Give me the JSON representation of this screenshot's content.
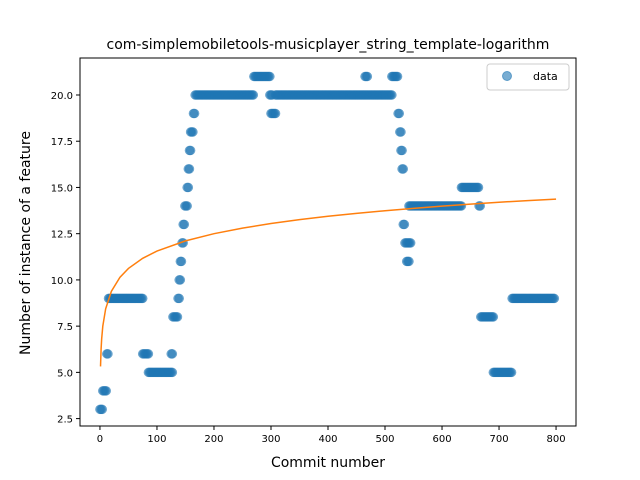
{
  "chart_data": {
    "type": "scatter",
    "title": "com-simplemobiletools-musicplayer_string_template-logarithm",
    "xlabel": "Commit number",
    "ylabel": "Number of instance of a feature",
    "xlim": [
      -35,
      835
    ],
    "ylim": [
      2.1,
      22
    ],
    "xticks": [
      0,
      100,
      200,
      300,
      400,
      500,
      600,
      700,
      800
    ],
    "yticks": [
      2.5,
      5.0,
      7.5,
      10.0,
      12.5,
      15.0,
      17.5,
      20.0
    ],
    "ytick_labels": [
      "2.5",
      "5.0",
      "7.5",
      "10.0",
      "12.5",
      "15.0",
      "17.5",
      "20.0"
    ],
    "legend": {
      "placement": "top-right",
      "entries": [
        "data"
      ]
    },
    "grid": false,
    "colors": {
      "points": "#1f77b4",
      "fit": "#ff7f0e"
    },
    "series": [
      {
        "name": "data",
        "kind": "scatter",
        "segments": [
          {
            "x_start": 0,
            "x_end": 5,
            "y": 3
          },
          {
            "x_start": 5,
            "x_end": 12,
            "y": 4
          },
          {
            "x_start": 12,
            "x_end": 15,
            "y": 6
          },
          {
            "x_start": 15,
            "x_end": 75,
            "y": 9
          },
          {
            "x_start": 75,
            "x_end": 85,
            "y": 6
          },
          {
            "x_start": 85,
            "x_end": 128,
            "y": 5
          },
          {
            "x_start": 125,
            "x_end": 128,
            "y": 6
          },
          {
            "x_start": 128,
            "x_end": 137,
            "y": 8
          },
          {
            "x_start": 137,
            "x_end": 139,
            "y": 9
          },
          {
            "x_start": 139,
            "x_end": 141,
            "y": 10
          },
          {
            "x_start": 141,
            "x_end": 144,
            "y": 11
          },
          {
            "x_start": 144,
            "x_end": 146,
            "y": 12
          },
          {
            "x_start": 146,
            "x_end": 149,
            "y": 13
          },
          {
            "x_start": 149,
            "x_end": 153,
            "y": 14
          },
          {
            "x_start": 153,
            "x_end": 155,
            "y": 15
          },
          {
            "x_start": 155,
            "x_end": 157,
            "y": 16
          },
          {
            "x_start": 157,
            "x_end": 159,
            "y": 17
          },
          {
            "x_start": 159,
            "x_end": 164,
            "y": 18
          },
          {
            "x_start": 164,
            "x_end": 167,
            "y": 19
          },
          {
            "x_start": 167,
            "x_end": 270,
            "y": 20
          },
          {
            "x_start": 270,
            "x_end": 298,
            "y": 21
          },
          {
            "x_start": 298,
            "x_end": 302,
            "y": 20
          },
          {
            "x_start": 300,
            "x_end": 308,
            "y": 19
          },
          {
            "x_start": 308,
            "x_end": 468,
            "y": 20
          },
          {
            "x_start": 465,
            "x_end": 470,
            "y": 21
          },
          {
            "x_start": 470,
            "x_end": 512,
            "y": 20
          },
          {
            "x_start": 512,
            "x_end": 523,
            "y": 21
          },
          {
            "x_start": 523,
            "x_end": 526,
            "y": 19
          },
          {
            "x_start": 526,
            "x_end": 528,
            "y": 18
          },
          {
            "x_start": 528,
            "x_end": 530,
            "y": 17
          },
          {
            "x_start": 530,
            "x_end": 532,
            "y": 16
          },
          {
            "x_start": 532,
            "x_end": 535,
            "y": 13
          },
          {
            "x_start": 535,
            "x_end": 545,
            "y": 12
          },
          {
            "x_start": 538,
            "x_end": 542,
            "y": 11
          },
          {
            "x_start": 542,
            "x_end": 634,
            "y": 14
          },
          {
            "x_start": 634,
            "x_end": 665,
            "y": 15
          },
          {
            "x_start": 665,
            "x_end": 668,
            "y": 14
          },
          {
            "x_start": 668,
            "x_end": 690,
            "y": 8
          },
          {
            "x_start": 690,
            "x_end": 723,
            "y": 5
          },
          {
            "x_start": 723,
            "x_end": 797,
            "y": 9
          }
        ]
      },
      {
        "name": "fit",
        "kind": "line",
        "model": "logarithmic",
        "x": [
          1,
          2,
          3,
          5,
          10,
          20,
          35,
          50,
          75,
          100,
          150,
          200,
          250,
          300,
          350,
          400,
          450,
          500,
          550,
          600,
          650,
          700,
          750,
          800
        ],
        "y": [
          5.32,
          6.26,
          6.81,
          7.5,
          8.44,
          9.38,
          10.14,
          10.62,
          11.17,
          11.56,
          12.11,
          12.5,
          12.8,
          13.05,
          13.26,
          13.44,
          13.6,
          13.74,
          13.87,
          13.99,
          14.1,
          14.2,
          14.29,
          14.37
        ]
      }
    ]
  }
}
